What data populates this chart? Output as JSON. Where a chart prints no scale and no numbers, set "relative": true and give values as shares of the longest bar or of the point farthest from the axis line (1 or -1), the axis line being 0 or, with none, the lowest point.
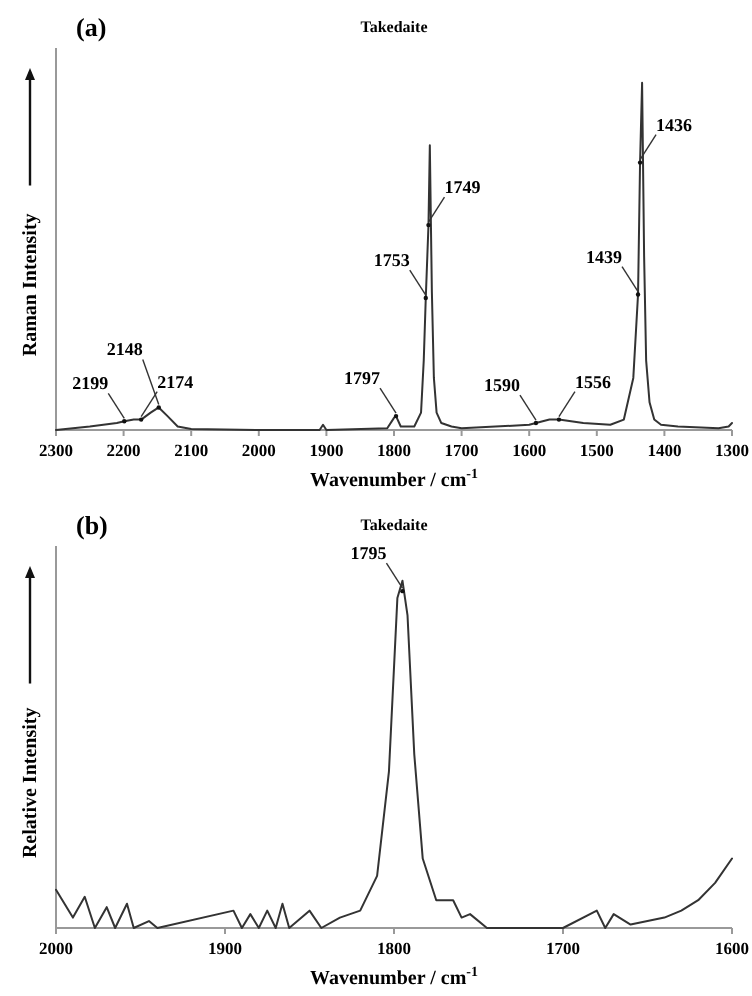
{
  "chart_data": [
    {
      "type": "line",
      "title": "Takedaite",
      "annotations": [
        "(a)",
        {
          "text": "2199",
          "x": 2199,
          "y": 0.025
        },
        {
          "text": "2174",
          "x": 2174,
          "y": 0.03
        },
        {
          "text": "2148",
          "x": 2148,
          "y": 0.065
        },
        {
          "text": "1797",
          "x": 1797,
          "y": 0.04
        },
        {
          "text": "1753",
          "x": 1753,
          "y": 0.38
        },
        {
          "text": "1749",
          "x": 1749,
          "y": 0.59
        },
        {
          "text": "1590",
          "x": 1590,
          "y": 0.02
        },
        {
          "text": "1556",
          "x": 1556,
          "y": 0.03
        },
        {
          "text": "1439",
          "x": 1439,
          "y": 0.39
        },
        {
          "text": "1436",
          "x": 1436,
          "y": 0.77
        }
      ],
      "xlabel": "Wavenumber / cm$^{-1}$",
      "ylabel": "Raman Intensity",
      "relative": true,
      "xlim": [
        2300,
        1300
      ],
      "xticks": [
        2300,
        2200,
        2100,
        2000,
        1900,
        1800,
        1700,
        1600,
        1500,
        1400,
        1300
      ],
      "grid": false,
      "marker": "none",
      "line_style": "solid",
      "series": [
        {
          "color": "#333333",
          "x": [
            2300,
            2250,
            2210,
            2199,
            2185,
            2174,
            2160,
            2148,
            2135,
            2120,
            2100,
            2000,
            1910,
            1905,
            1900,
            1810,
            1800,
            1797,
            1790,
            1770,
            1760,
            1756,
            1753,
            1749,
            1747,
            1744,
            1741,
            1737,
            1730,
            1715,
            1700,
            1650,
            1600,
            1590,
            1570,
            1556,
            1520,
            1480,
            1460,
            1446,
            1439,
            1436,
            1433,
            1430,
            1427,
            1422,
            1415,
            1405,
            1380,
            1320,
            1305,
            1300
          ],
          "values": [
            0,
            0.01,
            0.02,
            0.025,
            0.03,
            0.03,
            0.05,
            0.065,
            0.04,
            0.01,
            0.003,
            0,
            0,
            0.015,
            0,
            0.005,
            0.035,
            0.04,
            0.01,
            0.01,
            0.05,
            0.2,
            0.38,
            0.59,
            0.82,
            0.4,
            0.15,
            0.05,
            0.02,
            0.01,
            0.005,
            0.01,
            0.015,
            0.02,
            0.03,
            0.03,
            0.02,
            0.015,
            0.03,
            0.15,
            0.39,
            0.77,
            1,
            0.5,
            0.2,
            0.08,
            0.03,
            0.015,
            0.01,
            0.005,
            0.01,
            0.02
          ]
        }
      ]
    },
    {
      "type": "line",
      "title": "Takedaite",
      "annotations": [
        "(b)",
        {
          "text": "1795",
          "x": 1795,
          "y": 0.97
        }
      ],
      "xlabel": "Wavenumber / cm$^{-1}$",
      "ylabel": "Relative Intensity",
      "relative": true,
      "xlim": [
        2000,
        1600
      ],
      "xticks": [
        2000,
        1900,
        1800,
        1700,
        1600
      ],
      "grid": false,
      "marker": "none",
      "line_style": "solid",
      "series": [
        {
          "color": "#333333",
          "x": [
            2000,
            1990,
            1983,
            1977,
            1970,
            1965,
            1958,
            1954,
            1945,
            1940,
            1895,
            1890,
            1885,
            1880,
            1875,
            1870,
            1866,
            1862,
            1850,
            1843,
            1832,
            1820,
            1810,
            1803,
            1798,
            1795,
            1792,
            1788,
            1783,
            1775,
            1765,
            1760,
            1755,
            1745,
            1700,
            1680,
            1675,
            1670,
            1660,
            1640,
            1630,
            1620,
            1610,
            1600
          ],
          "values": [
            0.11,
            0.03,
            0.09,
            0,
            0.06,
            0,
            0.07,
            0,
            0.02,
            0,
            0.05,
            0,
            0.04,
            0,
            0.05,
            0,
            0.07,
            0,
            0.05,
            0,
            0.03,
            0.05,
            0.15,
            0.45,
            0.95,
            1,
            0.9,
            0.5,
            0.2,
            0.08,
            0.08,
            0.03,
            0.04,
            0,
            0,
            0.05,
            0,
            0.04,
            0.01,
            0.03,
            0.05,
            0.08,
            0.13,
            0.2
          ]
        }
      ]
    }
  ]
}
